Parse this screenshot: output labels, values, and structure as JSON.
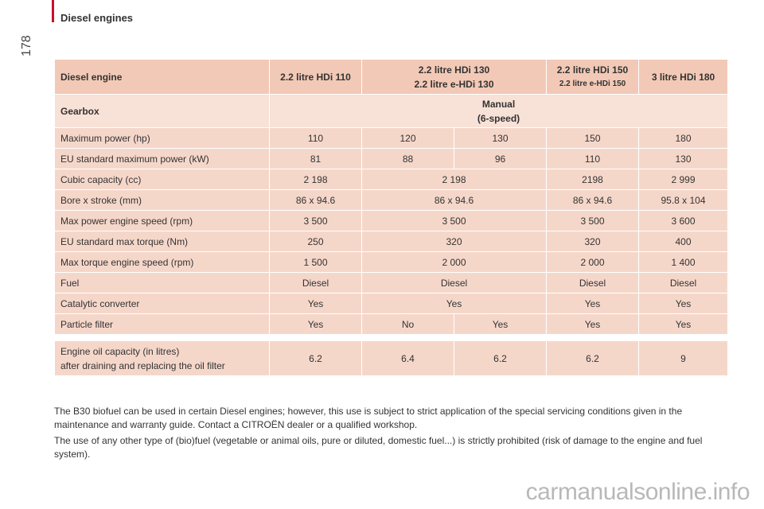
{
  "header": {
    "section_title": "Diesel engines",
    "page_number": "178"
  },
  "table": {
    "header": {
      "label": "Diesel engine",
      "col1": "2.2 litre HDi 110",
      "col2_line1": "2.2 litre HDi 130",
      "col2_line2": "2.2 litre e-HDi 130",
      "col3_line1": "2.2 litre HDi 150",
      "col3_line2": "2.2 litre e-HDi 150",
      "col4": "3 litre HDi 180"
    },
    "gearbox": {
      "label": "Gearbox",
      "line1": "Manual",
      "line2": "(6-speed)"
    },
    "max_power_hp": {
      "label": "Maximum power (hp)",
      "v1": "110",
      "v2": "120",
      "v3": "130",
      "v4": "150",
      "v5": "180"
    },
    "eu_power_kw": {
      "label": "EU standard maximum power (kW)",
      "v1": "81",
      "v2": "88",
      "v3": "96",
      "v4": "110",
      "v5": "130"
    },
    "cubic_capacity": {
      "label": "Cubic capacity (cc)",
      "v1": "2 198",
      "v2": "2 198",
      "v3": "2198",
      "v4": "2 999"
    },
    "bore_stroke": {
      "label": "Bore x stroke (mm)",
      "v1": "86 x 94.6",
      "v2": "86 x 94.6",
      "v3": "86 x 94.6",
      "v4": "95.8 x 104"
    },
    "max_power_speed": {
      "label": "Max power engine speed (rpm)",
      "v1": "3 500",
      "v2": "3 500",
      "v3": "3 500",
      "v4": "3 600"
    },
    "eu_torque": {
      "label": "EU standard max torque (Nm)",
      "v1": "250",
      "v2": "320",
      "v3": "320",
      "v4": "400"
    },
    "max_torque_speed": {
      "label": "Max torque engine speed (rpm)",
      "v1": "1 500",
      "v2": "2 000",
      "v3": "2 000",
      "v4": "1 400"
    },
    "fuel": {
      "label": "Fuel",
      "v1": "Diesel",
      "v2": "Diesel",
      "v3": "Diesel",
      "v4": "Diesel"
    },
    "catalytic": {
      "label": "Catalytic converter",
      "v1": "Yes",
      "v2": "Yes",
      "v3": "Yes",
      "v4": "Yes"
    },
    "particle": {
      "label": "Particle filter",
      "v1": "Yes",
      "v2": "No",
      "v3": "Yes",
      "v4": "Yes",
      "v5": "Yes"
    },
    "oil": {
      "label_line1": "Engine oil capacity (in litres)",
      "label_line2": "after draining and replacing the oil filter",
      "v1": "6.2",
      "v2": "6.4",
      "v3": "6.2",
      "v4": "6.2",
      "v5": "9"
    }
  },
  "notes": {
    "p1": "The B30 biofuel can be used in certain Diesel engines; however, this use is subject to strict application of the special servicing conditions given in the maintenance and warranty guide. Contact a CITROËN dealer or a qualified workshop.",
    "p2": "The use of any other type of (bio)fuel (vegetable or animal oils, pure or diluted, domestic fuel...) is strictly prohibited (risk of damage to the engine and fuel system)."
  },
  "watermark": "carmanualsonline.info"
}
